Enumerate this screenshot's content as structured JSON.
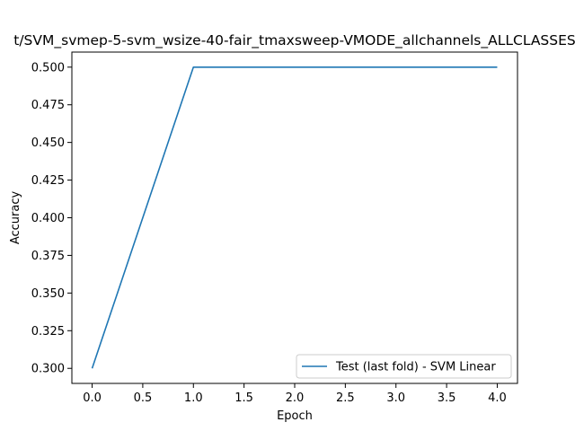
{
  "chart_data": {
    "type": "line",
    "title": "t/SVM_svmep-5-svm_wsize-40-fair_tmaxsweep-VMODE_allchannels_ALLCLASSES",
    "xlabel": "Epoch",
    "ylabel": "Accuracy",
    "xlim": [
      -0.2,
      4.2
    ],
    "ylim": [
      0.29,
      0.51
    ],
    "xticks": [
      0.0,
      0.5,
      1.0,
      1.5,
      2.0,
      2.5,
      3.0,
      3.5,
      4.0
    ],
    "xtick_labels": [
      "0.0",
      "0.5",
      "1.0",
      "1.5",
      "2.0",
      "2.5",
      "3.0",
      "3.5",
      "4.0"
    ],
    "yticks": [
      0.3,
      0.325,
      0.35,
      0.375,
      0.4,
      0.425,
      0.45,
      0.475,
      0.5
    ],
    "ytick_labels": [
      "0.300",
      "0.325",
      "0.350",
      "0.375",
      "0.400",
      "0.425",
      "0.450",
      "0.475",
      "0.500"
    ],
    "grid": false,
    "legend_position": "lower-right",
    "series": [
      {
        "name": "Test (last fold) - SVM Linear",
        "color": "#1f77b4",
        "x": [
          0,
          1,
          2,
          3,
          4
        ],
        "y": [
          0.3,
          0.5,
          0.5,
          0.5,
          0.5
        ]
      }
    ]
  }
}
